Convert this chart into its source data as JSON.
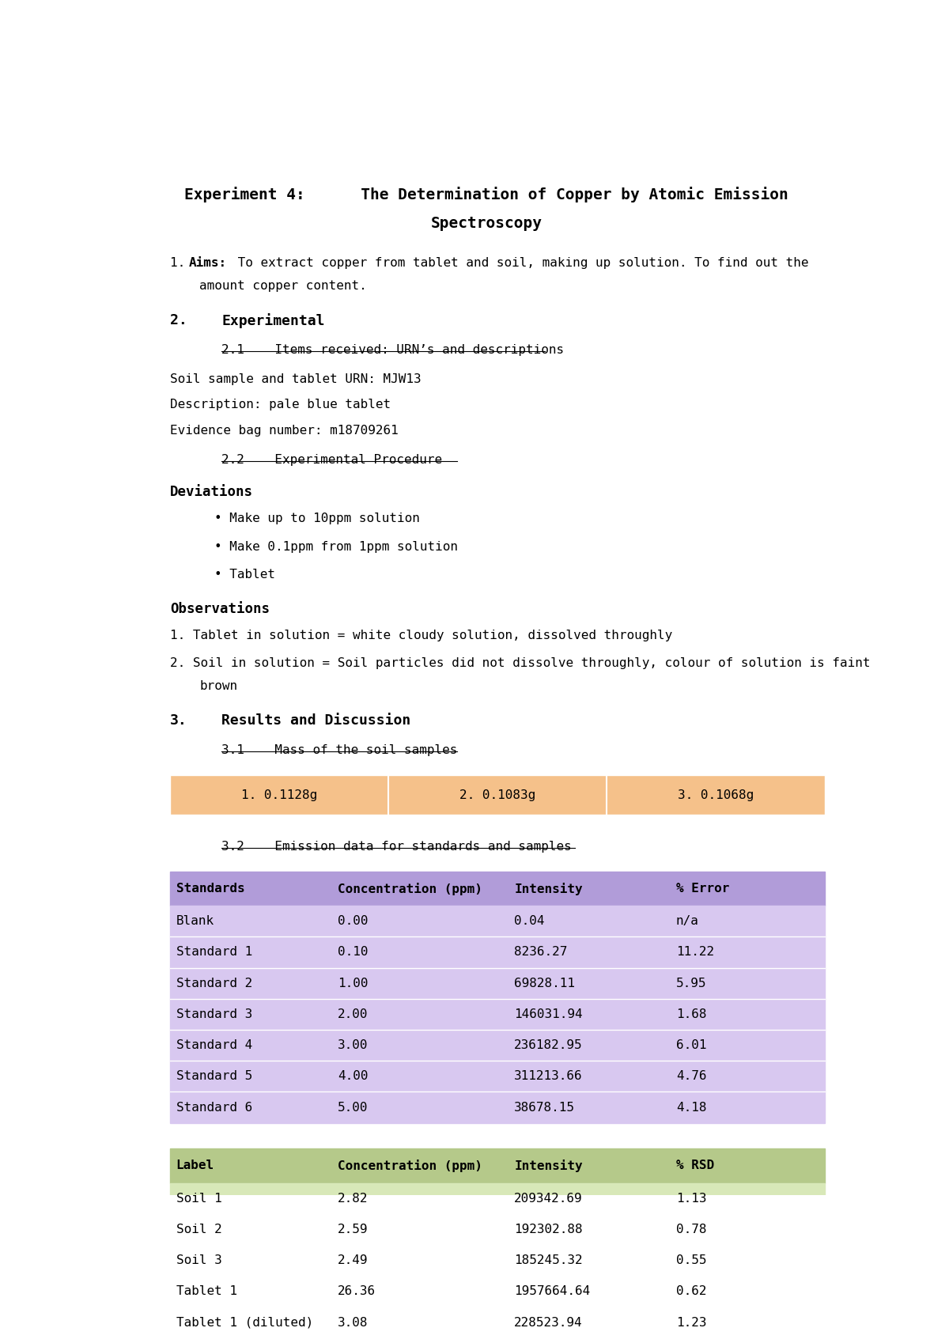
{
  "title_line1": "Experiment 4:      The Determination of Copper by Atomic Emission",
  "title_line2": "Spectroscopy",
  "background_color": "#ffffff",
  "aims_line1_rest": " To extract copper from tablet and soil, making up solution. To find out the",
  "aims_line2": "    amount copper content.",
  "section2_header": "2.",
  "section2_title": "Experimental",
  "sub21_text": "2.1    Items received: URN’s and descriptions",
  "urn_text": "Soil sample and tablet URN: MJW13",
  "description_text": "Description: pale blue tablet",
  "evidence_text": "Evidence bag number: m18709261",
  "sub22_text": "2.2    Experimental Procedure",
  "deviations_header": "Deviations",
  "deviations_bullets": [
    "Make up to 10ppm solution",
    "Make 0.1ppm from 1ppm solution",
    "Tablet"
  ],
  "observations_header": "Observations",
  "obs1": "1. Tablet in solution = white cloudy solution, dissolved throughly",
  "obs2_line1": "2. Soil in solution = Soil particles did not dissolve throughly, colour of solution is faint",
  "obs2_line2": "    brown",
  "section3_header": "3.",
  "section3_title": "Results and Discussion",
  "sub31_text": "3.1    Mass of the soil samples",
  "mass_table_color": "#f5c18a",
  "mass_table_values": [
    "1. 0.1128g",
    "2. 0.1083g",
    "3. 0.1068g"
  ],
  "sub32_text": "3.2    Emission data for standards and samples",
  "standards_table_header_color": "#b19cd9",
  "standards_table_row_color": "#d8c8f0",
  "standards_headers": [
    "Standards",
    "Concentration (ppm)",
    "Intensity",
    "% Error"
  ],
  "standards_data": [
    [
      "Blank",
      "0.00",
      "0.04",
      "n/a"
    ],
    [
      "Standard 1",
      "0.10",
      "8236.27",
      "11.22"
    ],
    [
      "Standard 2",
      "1.00",
      "69828.11",
      "5.95"
    ],
    [
      "Standard 3",
      "2.00",
      "146031.94",
      "1.68"
    ],
    [
      "Standard 4",
      "3.00",
      "236182.95",
      "6.01"
    ],
    [
      "Standard 5",
      "4.00",
      "311213.66",
      "4.76"
    ],
    [
      "Standard 6",
      "5.00",
      "38678.15",
      "4.18"
    ]
  ],
  "samples_table_header_color": "#b5c98a",
  "samples_table_row_color": "#d8e8b8",
  "samples_headers": [
    "Label",
    "Concentration (ppm)",
    "Intensity",
    "% RSD"
  ],
  "samples_data": [
    [
      "Soil 1",
      "2.82",
      "209342.69",
      "1.13"
    ],
    [
      "Soil 2",
      "2.59",
      "192302.88",
      "0.78"
    ],
    [
      "Soil 3",
      "2.49",
      "185245.32",
      "0.55"
    ],
    [
      "Tablet 1",
      "26.36",
      "1957664.64",
      "0.62"
    ],
    [
      "Tablet 1 (diluted)",
      "3.08",
      "228523.94",
      "1.23"
    ]
  ]
}
